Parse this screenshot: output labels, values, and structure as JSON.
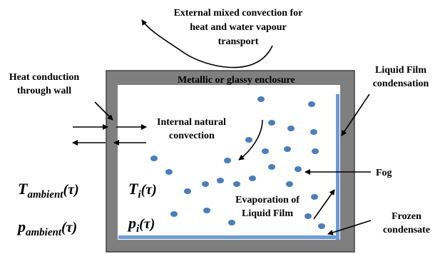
{
  "labels": {
    "external_line1": "External mixed convection for",
    "external_line2": "heat and water vapour",
    "external_line3": "transport",
    "enclosure": "Metallic or glassy enclosure",
    "heat_conduction_line1": "Heat conduction",
    "heat_conduction_line2": "through wall",
    "internal_line1": "Internal natural",
    "internal_line2": "convection",
    "liquid_film_line1": "Liquid Film",
    "liquid_film_line2": "condensation",
    "fog": "Fog",
    "evaporation_line1": "Evaporation of",
    "evaporation_line2": "Liquid Film",
    "frozen_line1": "Frozen",
    "frozen_line2": "condensate"
  },
  "math": {
    "t_ambient_base": "T",
    "t_ambient_sub": "ambient",
    "t_ambient_arg": "(τ)",
    "p_ambient_base": "p",
    "p_ambient_sub": "ambient",
    "p_ambient_arg": "(τ)",
    "t_i_base": "T",
    "t_i_sub": "i",
    "t_i_arg": "(τ)",
    "p_i_base": "p",
    "p_i_sub": "i",
    "p_i_arg": "(τ)"
  },
  "colors": {
    "wall": "#7f7f7f",
    "wall_border": "#404040",
    "droplet": "#4a7ebb",
    "film": "#6e9bd3"
  }
}
